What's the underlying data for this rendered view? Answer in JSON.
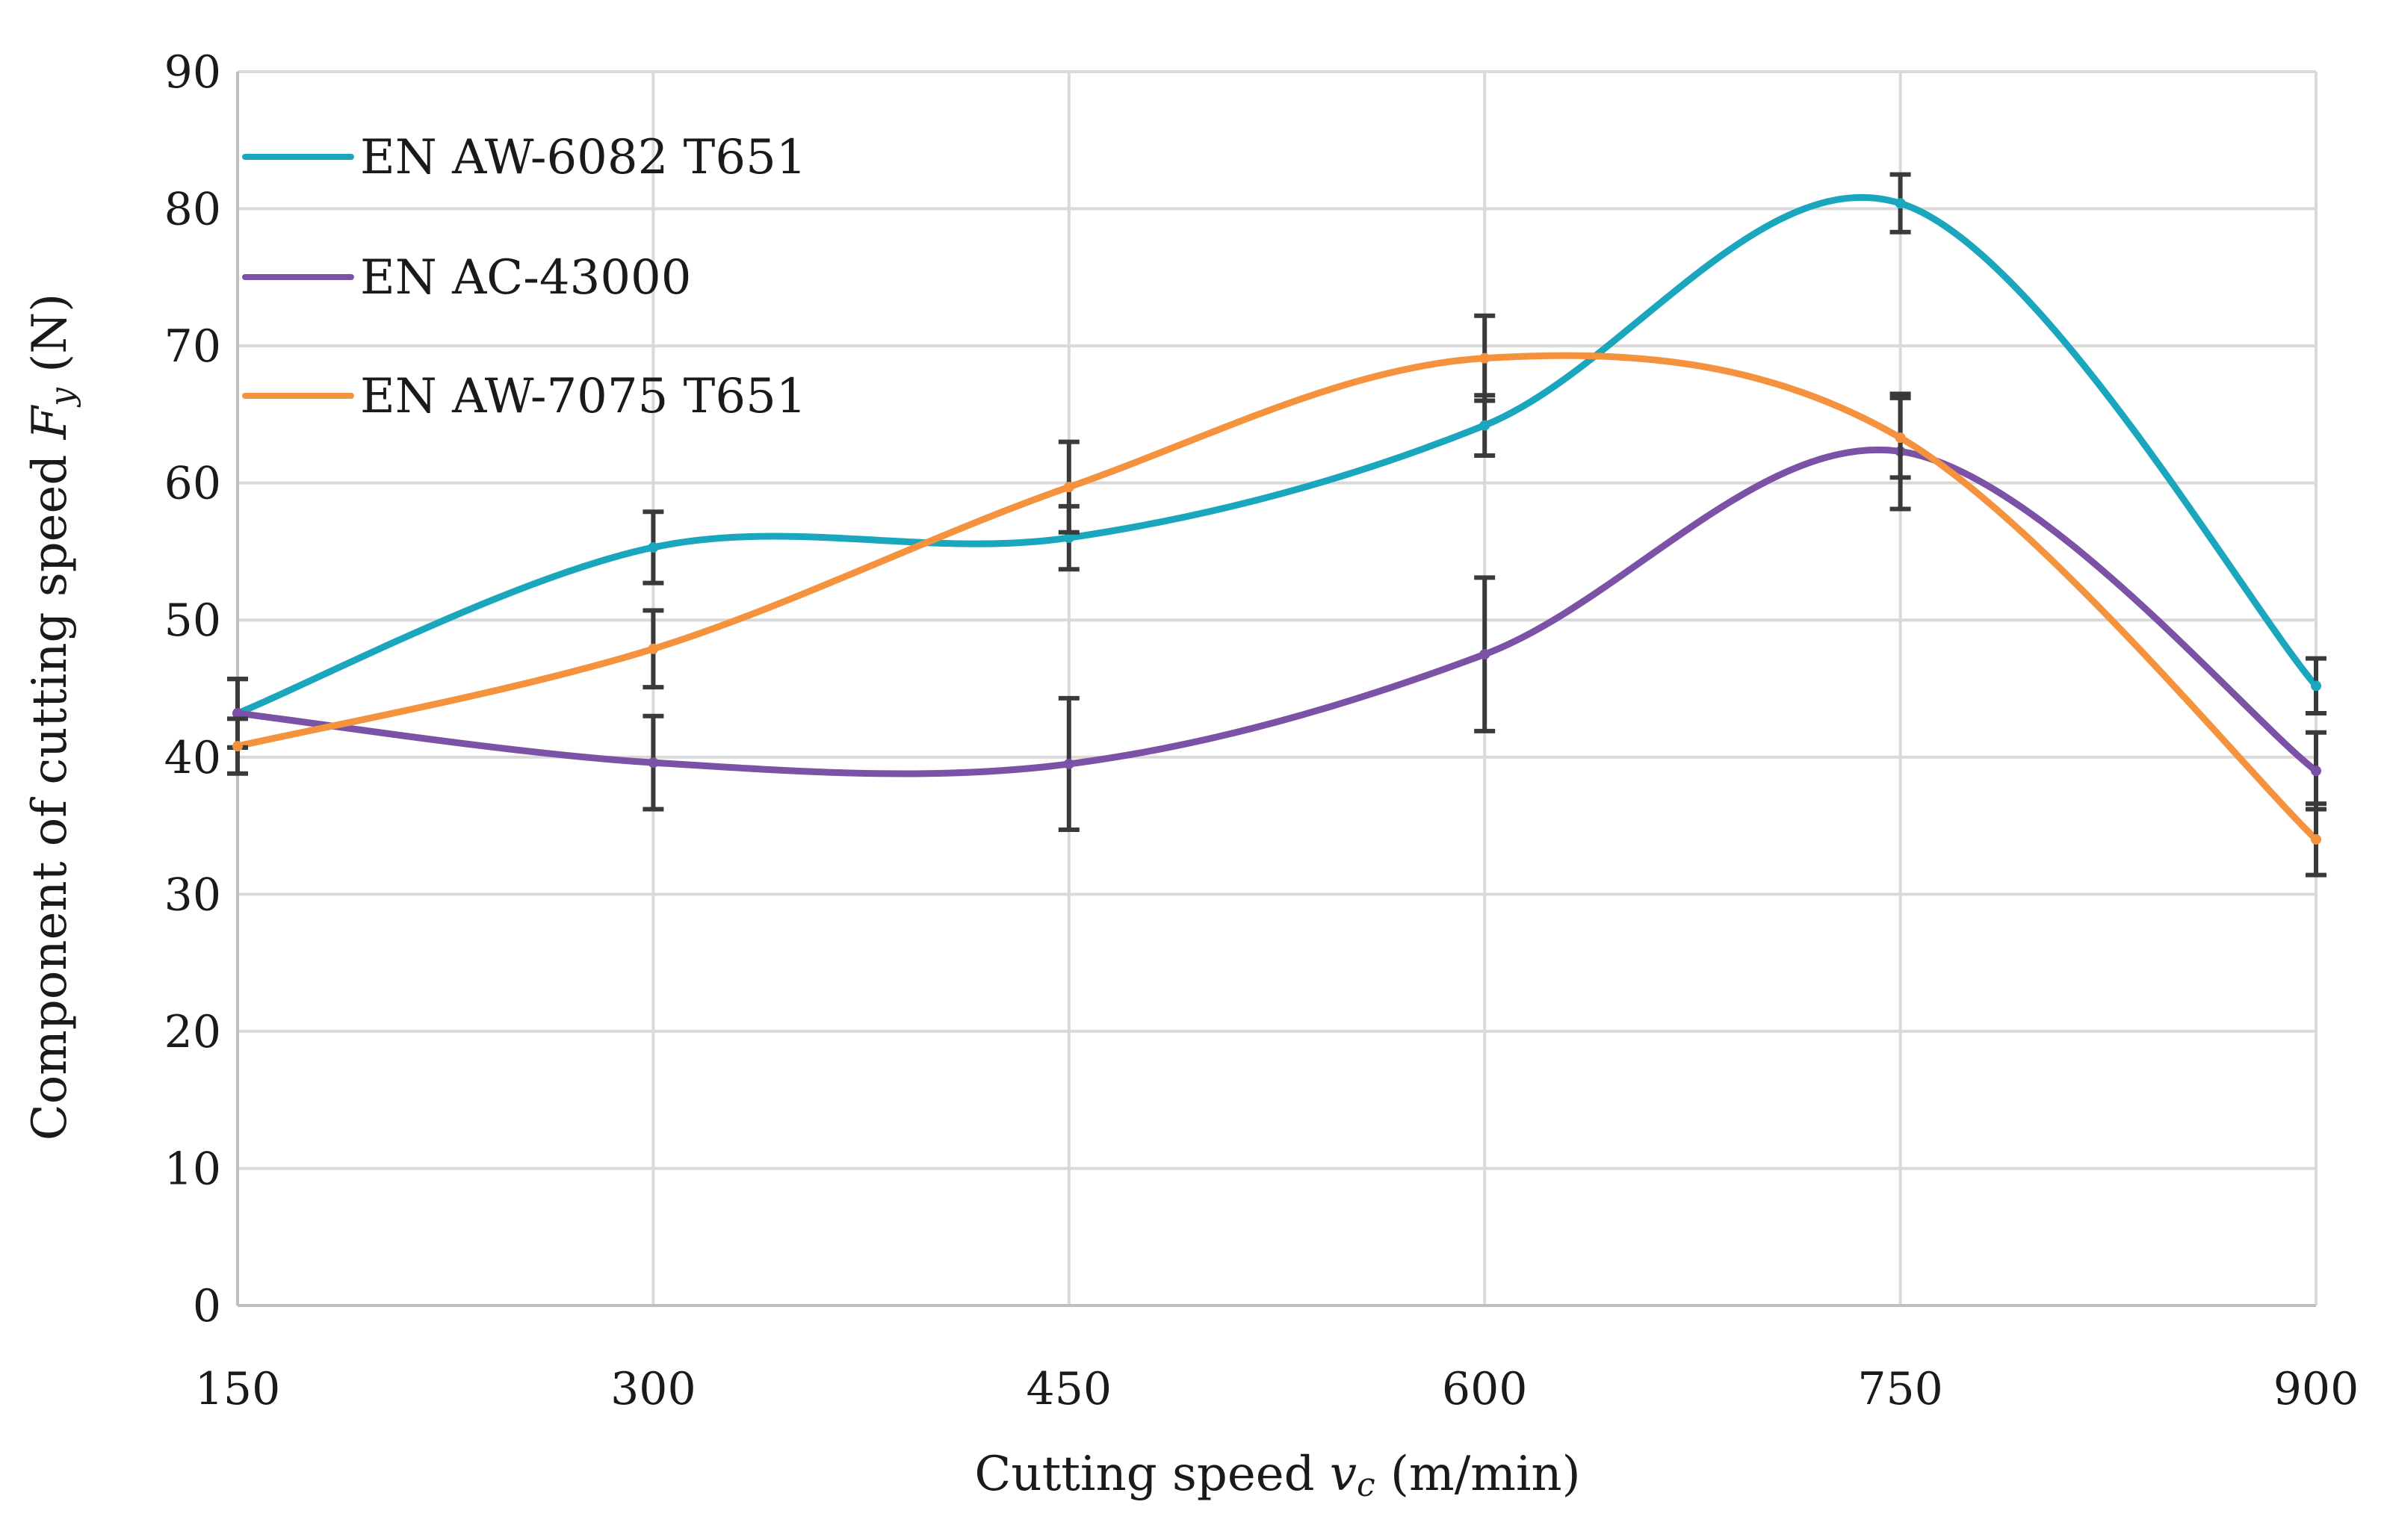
{
  "chart_data": {
    "type": "line",
    "title": "",
    "xlabel_prefix": "Cutting speed ",
    "xlabel_var": "v",
    "xlabel_sub": "c",
    "xlabel_suffix": " (m/min)",
    "ylabel_prefix": "Component of cutting speed ",
    "ylabel_var": "F",
    "ylabel_sub": "y",
    "ylabel_suffix": " (N)",
    "x": [
      150,
      300,
      450,
      600,
      750,
      900
    ],
    "x_tick_labels": [
      "150",
      "300",
      "450",
      "600",
      "750",
      "900"
    ],
    "xlim": [
      150,
      900
    ],
    "ylim": [
      0,
      90
    ],
    "y_ticks": [
      0,
      10,
      20,
      30,
      40,
      50,
      60,
      70,
      80,
      90
    ],
    "y_tick_labels": [
      "0",
      "10",
      "20",
      "30",
      "40",
      "50",
      "60",
      "70",
      "80",
      "90"
    ],
    "grid": true,
    "legend_position": "top-left",
    "series": [
      {
        "name": "EN AW-6082 T651",
        "color": "#1aa6bd",
        "values": [
          43.2,
          55.3,
          56.0,
          64.2,
          80.4,
          45.2
        ],
        "error": [
          2.5,
          2.6,
          2.3,
          2.2,
          2.1,
          2.0
        ]
      },
      {
        "name": "EN AC-43000",
        "color": "#7b52a6",
        "values": [
          43.2,
          39.6,
          39.5,
          47.5,
          62.3,
          39.0
        ],
        "error": [
          2.5,
          3.4,
          4.8,
          5.6,
          4.2,
          2.8
        ]
      },
      {
        "name": "EN AW-7075 T651",
        "color": "#f5923e",
        "values": [
          40.8,
          47.9,
          59.7,
          69.1,
          63.3,
          34.0
        ],
        "error": [
          2.0,
          2.8,
          3.3,
          3.1,
          2.9,
          2.6
        ]
      }
    ]
  }
}
